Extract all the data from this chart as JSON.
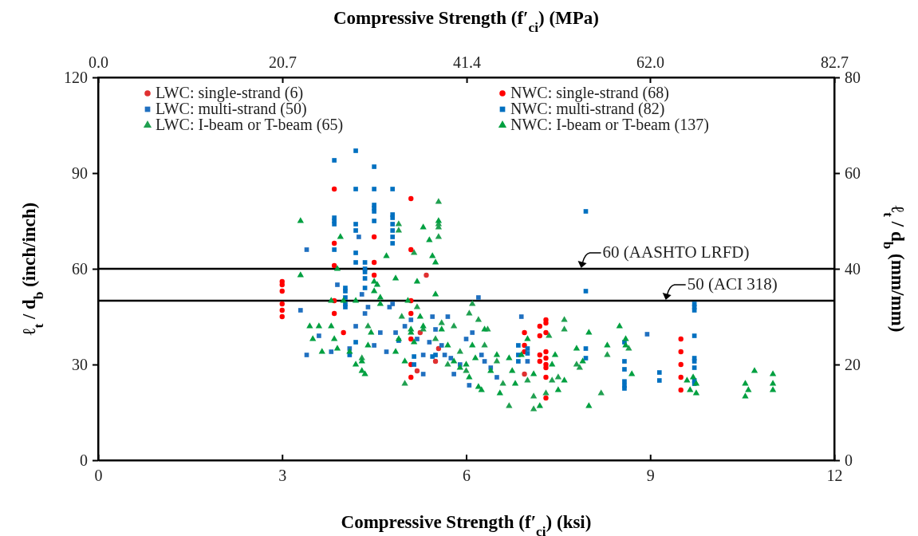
{
  "chart_data": {
    "type": "scatter",
    "xlabel": "Compressive Strength (f′$_{ci}$) (ksi)",
    "x2label": "Compressive Strength (f′$_{ci}$) (MPa)",
    "ylabel": "ℓ$_{t}$ / d$_{b}$ (inch/inch)",
    "y2label": "ℓ$_{t}$ / d$_{b}$ (mm/mm)",
    "xlim": [
      0,
      12
    ],
    "xticks": [
      0,
      3,
      6,
      9,
      12
    ],
    "x2lim": [
      0,
      82.7
    ],
    "x2ticks": [
      {
        "value": 0,
        "label": "0.0"
      },
      20.7,
      41.4,
      {
        "value": 62,
        "label": "62.0"
      },
      82.7
    ],
    "ylim": [
      0,
      120
    ],
    "yticks": [
      0,
      30,
      60,
      90,
      120
    ],
    "y2lim": [
      0,
      80
    ],
    "y2ticks": [
      0,
      20,
      40,
      60,
      80
    ],
    "grid": false,
    "legend": "top",
    "ref_lines": [
      {
        "axis": "y",
        "value": 60,
        "label": "60 (AASHTO LRFD)",
        "color": "#000000"
      },
      {
        "axis": "y",
        "value": 50,
        "label": "50 (ACI 318)",
        "color": "#000000"
      }
    ],
    "series": [
      {
        "name": "LWC: single-strand (6)",
        "color": "#e03030",
        "marker": "circle",
        "x": [
          5.35,
          5.25,
          5.2,
          5.5,
          5.55,
          6.95
        ],
        "values": [
          58,
          40,
          28,
          31,
          35,
          27
        ]
      },
      {
        "name": "LWC: multi-strand (50)",
        "color": "#2070c0",
        "marker": "square",
        "x": [
          3.4,
          3.3,
          3.4,
          3.6,
          3.8,
          3.9,
          4.1,
          4.25,
          4.3,
          4.2,
          4.4,
          4.35,
          4.5,
          4.6,
          4.7,
          4.75,
          4.85,
          5.0,
          5.1,
          5.2,
          5.3,
          5.4,
          5.45,
          5.5,
          5.6,
          5.7,
          5.75,
          5.8,
          5.9,
          6.0,
          6.1,
          6.2,
          6.25,
          6.3,
          6.4,
          6.5,
          6.9,
          7.0,
          8.95,
          6.05,
          5.3,
          4.8,
          5.65
        ],
        "values": [
          66,
          47,
          33,
          39,
          34,
          55,
          35,
          70,
          52,
          42,
          48,
          46,
          36,
          40,
          34,
          48,
          40,
          42,
          44,
          38,
          33,
          37,
          45,
          41,
          36,
          45,
          32,
          27,
          30,
          38,
          40,
          51,
          33,
          31,
          29,
          26,
          45,
          31,
          39.5,
          23.5,
          27,
          49,
          33
        ]
      },
      {
        "name": "LWC: I-beam or T-beam (65)",
        "color": "#20a050",
        "marker": "triangle",
        "x": [
          5.55,
          5.55,
          5.55,
          5.55,
          4.9,
          4.9,
          5.15,
          4.95,
          5.3,
          5.5,
          5.6,
          5.7,
          5.8,
          5.9,
          6.0,
          6.1,
          6.2,
          6.3,
          6.35,
          6.5,
          6.6,
          6.7,
          7.0,
          7.1,
          7.1,
          7.3,
          7.35,
          7.5,
          7.6,
          7.6,
          7.8,
          7.85,
          8.2,
          8.3,
          8.65,
          4.4,
          4.3,
          5.2,
          5.0,
          6.05,
          7.4
        ],
        "values": [
          81,
          74,
          73,
          70,
          74,
          72,
          65,
          45,
          41,
          38,
          43,
          30,
          42,
          34,
          28,
          49,
          44,
          36,
          41,
          31,
          24,
          17,
          25,
          20,
          16,
          21,
          39,
          26,
          44,
          41,
          30,
          29,
          21,
          33,
          35,
          42,
          32,
          48,
          24,
          46,
          25
        ]
      },
      {
        "name": "NWC: single-strand (68)",
        "color": "#ff0000",
        "marker": "circle",
        "x": [
          3,
          3,
          3,
          3,
          3,
          3,
          3.85,
          3.85,
          3.85,
          3.85,
          3.85,
          4.0,
          4.5,
          4.5,
          4.5,
          5.1,
          5.1,
          5.1,
          5.1,
          5.1,
          5.1,
          5.1,
          6.95,
          6.95,
          6.95,
          7.2,
          7.2,
          7.2,
          7.2,
          7.3,
          7.3,
          7.3,
          7.3,
          7.3,
          7.3,
          7.3,
          7.3,
          7.3,
          9.5,
          9.5,
          9.5,
          9.5,
          9.5
        ],
        "values": [
          56,
          55,
          53,
          49,
          47,
          45,
          85,
          68,
          61,
          50,
          46,
          40,
          70,
          62,
          58,
          82,
          66,
          50,
          46,
          38,
          30,
          26,
          40,
          36,
          34,
          42,
          39,
          33,
          31,
          44,
          43,
          40,
          34,
          32,
          30,
          29,
          26,
          19.5,
          38,
          34,
          30,
          26,
          22
        ]
      },
      {
        "name": "NWC: multi-strand (82)",
        "color": "#0070c0",
        "marker": "square",
        "x": [
          3.85,
          3.85,
          3.85,
          3.85,
          3.85,
          4.03,
          4.03,
          4.03,
          4.03,
          4.03,
          4.2,
          4.2,
          4.2,
          4.2,
          4.2,
          4.2,
          4.2,
          4.1,
          4.35,
          4.35,
          4.35,
          4.35,
          4.35,
          4.5,
          4.5,
          4.5,
          4.5,
          4.5,
          4.5,
          4.8,
          4.8,
          4.8,
          4.8,
          4.8,
          4.8,
          4.8,
          4.9,
          5.15,
          5.15,
          5.45,
          5.5,
          6.85,
          6.85,
          6.85,
          7.0,
          7.0,
          7.95,
          7.95,
          7.95,
          7.95,
          8.58,
          8.58,
          8.58,
          8.58,
          8.58,
          8.58,
          9.15,
          9.15,
          9.72,
          9.72,
          9.72,
          9.72,
          9.72,
          9.72,
          9.72,
          9.72,
          9.72
        ],
        "values": [
          94,
          76,
          75,
          74,
          66,
          54,
          53,
          51,
          49,
          48,
          97,
          85,
          74,
          72,
          65,
          62,
          37,
          33,
          62,
          60,
          59,
          57,
          54,
          92,
          85,
          80,
          79,
          78,
          75,
          85,
          77,
          76,
          74,
          72,
          70,
          68,
          37.5,
          32.5,
          30,
          32.5,
          33,
          36,
          33,
          31,
          35,
          33.5,
          78,
          53,
          35,
          32,
          37,
          31,
          28.5,
          24.7,
          23.4,
          22.5,
          27.5,
          25,
          49,
          48,
          47,
          39,
          32,
          31,
          29,
          25,
          24
        ]
      },
      {
        "name": "NWC: I-beam or T-beam (137)",
        "color": "#00a040",
        "marker": "triangle",
        "x": [
          3.3,
          3.3,
          3.45,
          3.5,
          3.6,
          3.65,
          3.8,
          3.8,
          3.85,
          3.9,
          3.95,
          3.9,
          4.0,
          4.1,
          4.2,
          4.2,
          4.3,
          4.3,
          4.35,
          4.4,
          4.45,
          4.5,
          4.55,
          4.5,
          4.6,
          4.6,
          4.7,
          4.85,
          4.9,
          4.85,
          5.0,
          5.05,
          5.1,
          5.1,
          5.15,
          5.2,
          5.25,
          5.3,
          5.3,
          5.4,
          5.45,
          5.5,
          5.5,
          5.55,
          5.6,
          5.7,
          5.8,
          5.9,
          6.0,
          6.05,
          6.1,
          6.15,
          6.2,
          6.25,
          6.3,
          6.4,
          6.5,
          6.55,
          6.7,
          6.75,
          6.8,
          6.9,
          7.0,
          7.1,
          7.2,
          7.4,
          7.45,
          7.5,
          7.6,
          7.8,
          7.9,
          8.0,
          8.0,
          8.3,
          8.5,
          8.6,
          8.7,
          9.6,
          9.65,
          9.75,
          9.7,
          9.75,
          10.55,
          10.6,
          10.55,
          10.7,
          11.0,
          11.0,
          11.0,
          8.6
        ],
        "values": [
          75,
          58,
          42,
          38,
          42,
          34,
          50,
          42,
          38,
          35,
          70,
          60,
          50,
          34,
          50,
          30,
          31,
          28,
          27,
          36,
          40,
          56,
          55,
          53,
          51,
          49,
          64,
          57,
          38,
          34,
          31,
          50,
          41,
          40,
          37,
          56,
          45,
          42,
          73,
          69,
          64,
          62,
          52,
          75,
          41,
          36,
          31,
          29,
          30,
          26,
          36,
          32,
          23,
          22,
          41,
          28,
          33,
          21,
          32,
          28,
          24,
          33,
          38,
          27,
          17,
          30,
          33,
          22,
          25,
          35,
          31,
          40,
          17,
          36,
          42,
          38,
          27,
          25,
          22,
          21,
          26,
          24,
          24,
          22,
          20,
          28,
          27,
          24,
          22,
          36
        ]
      }
    ]
  }
}
